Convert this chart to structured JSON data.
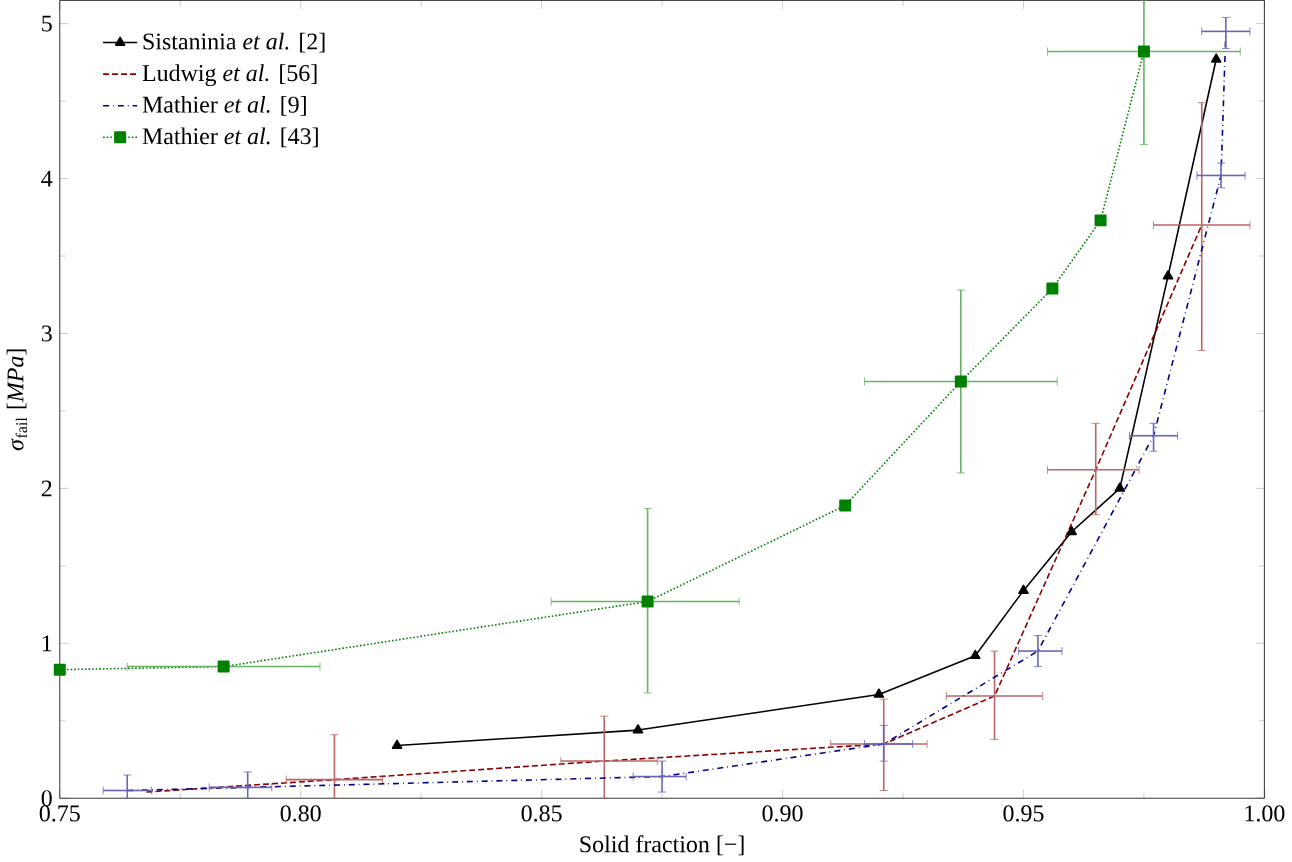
{
  "chart_data": {
    "type": "line",
    "xlabel": "Solid fraction [−]",
    "ylabel": "*σ*$_{fail}$ [*MPa*]",
    "xlim": [
      0.75,
      1.0
    ],
    "ylim": [
      0,
      5.15
    ],
    "xticks": [
      {
        "value": 0.75,
        "label": "0.75"
      },
      {
        "value": 0.8,
        "label": "0.80"
      },
      {
        "value": 0.85,
        "label": "0.85"
      },
      {
        "value": 0.9,
        "label": "0.90"
      },
      {
        "value": 0.95,
        "label": "0.95"
      },
      {
        "value": 1.0,
        "label": "1.00"
      }
    ],
    "yticks": [
      0,
      1,
      2,
      3,
      4,
      5
    ],
    "legend": "top left",
    "grid": false,
    "series": [
      {
        "name": "Sistaninia *et al.* [2]",
        "color": "#000000",
        "marker": "triangle",
        "line_style": "solid",
        "x": [
          0.82,
          0.87,
          0.92,
          0.94,
          0.95,
          0.96,
          0.97,
          0.98,
          0.99
        ],
        "values": [
          0.34,
          0.44,
          0.67,
          0.92,
          1.34,
          1.72,
          2.0,
          3.37,
          4.77
        ]
      },
      {
        "name": "Ludwig *et al.* [56]",
        "color": "#8b0000",
        "marker": "none",
        "line_style": "dashed",
        "x": [
          0.768,
          0.807,
          0.863,
          0.921,
          0.944,
          0.965,
          0.987
        ],
        "values": [
          0.04,
          0.12,
          0.24,
          0.35,
          0.66,
          2.12,
          3.7
        ],
        "errors": [
          null,
          [
            0,
            0.41
          ],
          [
            0,
            0.53
          ],
          [
            0.05,
            0.64
          ],
          [
            0.38,
            0.95
          ],
          [
            1.83,
            2.42
          ],
          [
            2.89,
            4.49
          ]
        ],
        "xerrors": [
          null,
          [
            0.797,
            0.817
          ],
          [
            0.854,
            0.874
          ],
          [
            0.91,
            0.93
          ],
          [
            0.934,
            0.954
          ],
          [
            0.955,
            0.974
          ],
          [
            0.977,
            0.997
          ]
        ]
      },
      {
        "name": "Mathier *et al.* [9]",
        "color": "#00008b",
        "marker": "none",
        "line_style": "dashdot",
        "x": [
          0.764,
          0.789,
          0.875,
          0.921,
          0.953,
          0.977,
          0.991,
          0.992
        ],
        "values": [
          0.05,
          0.07,
          0.14,
          0.35,
          0.95,
          2.34,
          4.02,
          4.95
        ],
        "errors": [
          [
            0,
            0.15
          ],
          [
            0,
            0.17
          ],
          [
            0.04,
            0.24
          ],
          [
            0.24,
            0.47
          ],
          [
            0.85,
            1.05
          ],
          [
            2.24,
            2.42
          ],
          [
            3.94,
            4.1
          ],
          [
            4.84,
            5.04
          ]
        ],
        "xerrors": [
          [
            0.759,
            0.769
          ],
          [
            0.781,
            0.794
          ],
          [
            0.869,
            0.88
          ],
          [
            0.917,
            0.927
          ],
          [
            0.949,
            0.958
          ],
          [
            0.972,
            0.982
          ],
          [
            0.986,
            0.996
          ],
          [
            0.987,
            0.997
          ]
        ]
      },
      {
        "name": "Mathier *et al.* [43]",
        "color": "#008000",
        "marker": "square",
        "line_style": "dotted",
        "x": [
          0.75,
          0.784,
          0.872,
          0.913,
          0.937,
          0.956,
          0.966,
          0.975
        ],
        "values": [
          0.83,
          0.85,
          1.27,
          1.89,
          2.69,
          3.29,
          3.73,
          4.82
        ],
        "errors": [
          null,
          null,
          [
            0.68,
            1.87
          ],
          null,
          [
            2.1,
            3.28
          ],
          null,
          null,
          [
            4.22,
            5.15
          ]
        ],
        "xerrors": [
          null,
          [
            0.764,
            0.804
          ],
          [
            0.852,
            0.891
          ],
          null,
          [
            0.917,
            0.957
          ],
          null,
          null,
          [
            0.955,
            0.995
          ]
        ]
      }
    ]
  }
}
